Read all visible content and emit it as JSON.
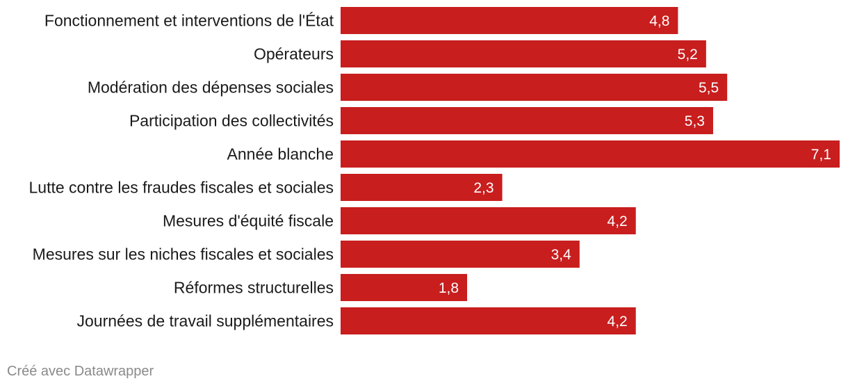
{
  "chart_data": {
    "type": "bar",
    "orientation": "horizontal",
    "categories": [
      "Fonctionnement et interventions de l'État",
      "Opérateurs",
      "Modération des dépenses sociales",
      "Participation des collectivités",
      "Année blanche",
      "Lutte contre les fraudes fiscales et sociales",
      "Mesures d'équité fiscale",
      "Mesures sur les niches fiscales et sociales",
      "Réformes structurelles",
      "Journées de travail supplémentaires"
    ],
    "values": [
      4.8,
      5.2,
      5.5,
      5.3,
      7.1,
      2.3,
      4.2,
      3.4,
      1.8,
      4.2
    ],
    "value_labels": [
      "4,8",
      "5,2",
      "5,5",
      "5,3",
      "7,1",
      "2,3",
      "4,2",
      "3,4",
      "1,8",
      "4,2"
    ],
    "xlim": [
      0,
      7.1
    ],
    "grid": false,
    "legend": "none",
    "color": "#c81e1e"
  },
  "footer": {
    "credit": "Créé avec Datawrapper"
  }
}
